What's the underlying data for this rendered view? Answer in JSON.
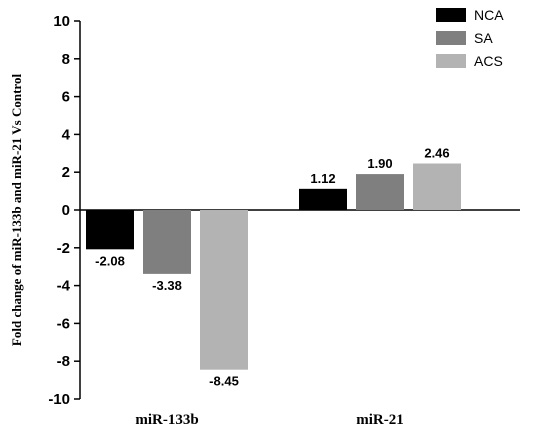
{
  "chart_data": {
    "type": "bar",
    "title": "",
    "xlabel": "",
    "ylabel": "Fold change of miR-133b and miR-21 Vs Control",
    "ylim": [
      -10,
      10
    ],
    "yticks": [
      -10,
      -8,
      -6,
      -4,
      -2,
      0,
      2,
      4,
      6,
      8,
      10
    ],
    "grid": false,
    "legend_position": "top-right",
    "categories": [
      "miR-133b",
      "miR-21"
    ],
    "series": [
      {
        "name": "NCA",
        "color": "#000000",
        "values": [
          -2.08,
          1.12
        ],
        "labels": [
          "-2.08",
          "1.12"
        ]
      },
      {
        "name": "SA",
        "color": "#7f7f7f",
        "values": [
          -3.38,
          1.9
        ],
        "labels": [
          "-3.38",
          "1.90"
        ]
      },
      {
        "name": "ACS",
        "color": "#b3b3b3",
        "values": [
          -8.45,
          2.46
        ],
        "labels": [
          "-8.45",
          "2.46"
        ]
      }
    ]
  }
}
